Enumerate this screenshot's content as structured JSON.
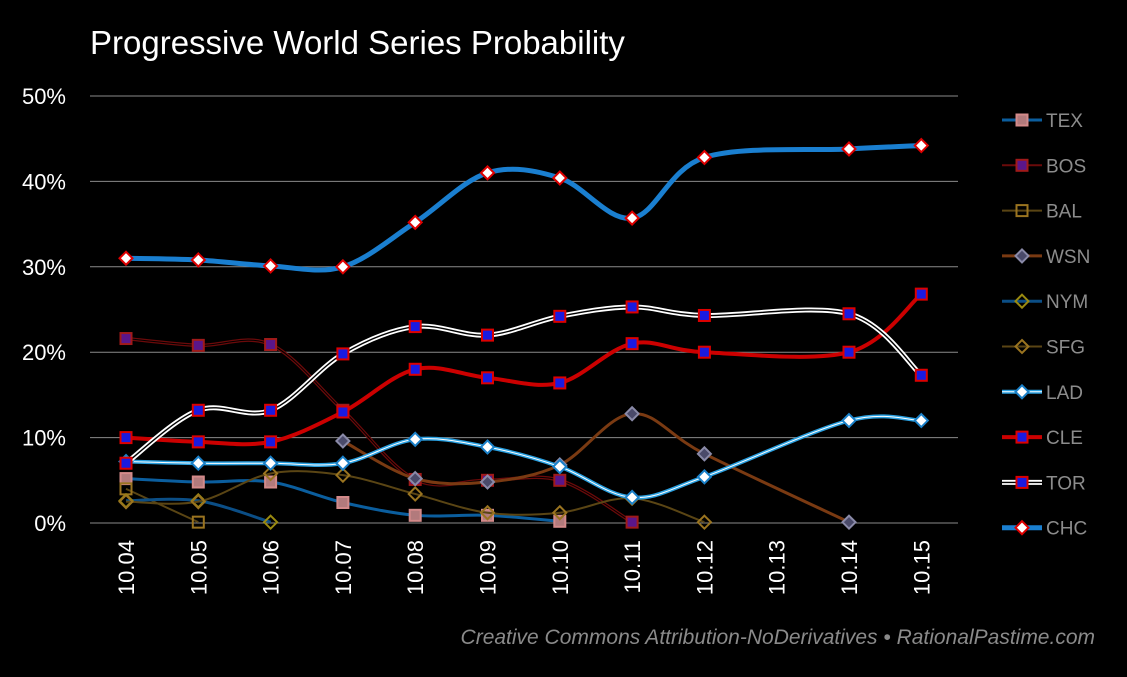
{
  "chart_data": {
    "type": "line",
    "title": "Progressive World Series Probability",
    "credit": "Creative Commons Attribution-NoDerivatives • RationalPastime.com",
    "categories": [
      "10.04",
      "10.05",
      "10.06",
      "10.07",
      "10.08",
      "10.09",
      "10.10",
      "10.11",
      "10.12",
      "10.13",
      "10.14",
      "10.15"
    ],
    "ylim": [
      0,
      50
    ],
    "yticks": [
      0,
      10,
      20,
      30,
      40,
      50
    ],
    "ytick_labels": [
      "0%",
      "10%",
      "20%",
      "30%",
      "40%",
      "50%"
    ],
    "legend_position": "right",
    "series": [
      {
        "name": "TEX",
        "color": "#0b5e9e",
        "marker": "square",
        "marker_fill": "#b27a7c",
        "marker_stroke": "#d38a8a",
        "line_width": 3,
        "values": [
          5.2,
          4.8,
          4.8,
          2.4,
          0.9,
          0.9,
          0.2,
          null,
          null,
          null,
          null,
          null
        ]
      },
      {
        "name": "BOS",
        "color": "#6b0a0a",
        "marker": "square",
        "marker_fill": "#5a168a",
        "marker_stroke": "#a01a1a",
        "line_width": 2,
        "values": [
          21.6,
          20.8,
          20.9,
          13.2,
          5.1,
          5.0,
          5.0,
          0.1,
          null,
          null,
          null,
          null
        ]
      },
      {
        "name": "BAL",
        "color": "#5a4514",
        "marker": "square",
        "marker_fill": "none",
        "marker_stroke": "#9a7420",
        "line_width": 2,
        "values": [
          4.0,
          0.1,
          null,
          null,
          null,
          null,
          null,
          null,
          null,
          null,
          null,
          null
        ]
      },
      {
        "name": "WSN",
        "color": "#7a3a12",
        "marker": "diamond",
        "marker_fill": "#4a4a6a",
        "marker_stroke": "#8a8aa8",
        "line_width": 3,
        "values": [
          null,
          null,
          null,
          9.6,
          5.2,
          4.8,
          6.8,
          12.8,
          8.1,
          null,
          0.1,
          null
        ]
      },
      {
        "name": "NYM",
        "color": "#0b4e86",
        "marker": "diamond",
        "marker_fill": "none",
        "marker_stroke": "#9a8a10",
        "line_width": 3,
        "values": [
          2.6,
          2.6,
          0.1,
          null,
          null,
          null,
          null,
          null,
          null,
          null,
          null,
          null
        ]
      },
      {
        "name": "SFG",
        "color": "#5a4514",
        "marker": "diamond",
        "marker_fill": "none",
        "marker_stroke": "#9a7420",
        "line_width": 2,
        "values": [
          2.5,
          2.5,
          5.8,
          5.6,
          3.4,
          1.2,
          1.2,
          2.9,
          0.1,
          null,
          null,
          null
        ]
      },
      {
        "name": "LAD",
        "color": "#2aa0e0",
        "marker": "diamond",
        "marker_fill": "#ffffff",
        "marker_stroke": "#1a80c8",
        "line_width": 3,
        "values": [
          7.2,
          7.0,
          7.0,
          7.0,
          9.8,
          8.9,
          6.6,
          3.0,
          5.4,
          null,
          12.0,
          12.0
        ]
      },
      {
        "name": "CLE",
        "color": "#cc0000",
        "marker": "square",
        "marker_fill": "#1a1ae0",
        "marker_stroke": "#dd0000",
        "line_width": 4,
        "values": [
          10.0,
          9.5,
          9.5,
          13.0,
          18.0,
          17.0,
          16.4,
          21.0,
          20.0,
          null,
          20.0,
          26.8
        ]
      },
      {
        "name": "TOR",
        "color": "#ffffff",
        "marker": "square",
        "marker_fill": "#1a1ae0",
        "marker_stroke": "#dd0000",
        "line_width": 4,
        "values": [
          7.0,
          13.2,
          13.2,
          19.8,
          23.0,
          22.0,
          24.2,
          25.3,
          24.3,
          null,
          24.5,
          17.3
        ]
      },
      {
        "name": "CHC",
        "color": "#1a7fd0",
        "marker": "diamond",
        "marker_fill": "#ffffff",
        "marker_stroke": "#dd0000",
        "line_width": 5,
        "values": [
          31.0,
          30.8,
          30.1,
          30.0,
          35.2,
          41.0,
          40.4,
          35.7,
          42.8,
          null,
          43.8,
          44.2
        ]
      }
    ]
  }
}
